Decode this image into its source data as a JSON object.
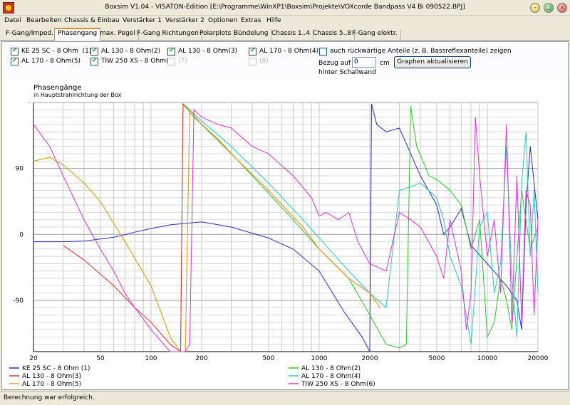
{
  "window": {
    "title": "Boxsim V1.04 - VISATON-Edition [E:\\Programme\\WinXP1\\Boxsim\\Projekte\\VOXcorde Bandpass V4 Bi 090522.BPJ]"
  },
  "menu": [
    "Datei",
    "Bearbeiten",
    "Chassis & Einbau",
    "Verstärker 1",
    "Verstärker 2",
    "Optionen",
    "Extras",
    "Hilfe"
  ],
  "tabs": [
    "F-Gang/Imped.",
    "Phasengang",
    "max. Pegel",
    "F-Gang Richtungen",
    "Polarplots",
    "Bündelung",
    "Chassis 1..4",
    "Chassis 5..8",
    "F-Gang elektr."
  ],
  "active_tab": 1,
  "checkboxes": [
    {
      "label": "KE 25 SC - 8 Ohm",
      "tag": "(1)",
      "checked": true,
      "disabled": false
    },
    {
      "label": "AL 130 - 8 Ohm(2)",
      "tag": "",
      "checked": true,
      "disabled": false
    },
    {
      "label": "AL 130 - 8 Ohm(3)",
      "tag": "",
      "checked": true,
      "disabled": false
    },
    {
      "label": "AL 170 - 8 Ohm(4)",
      "tag": "",
      "checked": true,
      "disabled": false
    },
    {
      "label": "AL 170 - 8 Ohm(5)",
      "tag": "",
      "checked": true,
      "disabled": false
    },
    {
      "label": "TIW 250 XS - 8 Ohm(6)",
      "tag": "",
      "checked": true,
      "disabled": false
    },
    {
      "label": "(7)",
      "tag": "",
      "checked": false,
      "disabled": true
    },
    {
      "label": "(8)",
      "tag": "",
      "checked": false,
      "disabled": true
    }
  ],
  "options": {
    "rear_label": "auch rückwärtige Anteile (z. B. Bassreflexanteile) zeigen",
    "rear_checked": false,
    "ref_label_1": "Bezug auf",
    "ref_label_2": "hinter Schallwand",
    "ref_value": "0",
    "ref_unit": "cm",
    "update_button": "Graphen aktualisieren"
  },
  "status": "Berechnung war erfolgreich.",
  "chart_data": {
    "type": "line",
    "title": "Phasengänge",
    "subtitle": "in Hauptstrahlrichtung der Box",
    "x_scale": "log",
    "xlim": [
      20,
      20000
    ],
    "ylim": [
      -160,
      180
    ],
    "x_ticks": [
      20,
      50,
      100,
      200,
      500,
      1000,
      2000,
      5000,
      10000,
      20000
    ],
    "y_ticks": [
      90,
      0,
      -90
    ],
    "grid": true,
    "legend_position": "bottom",
    "series": [
      {
        "name": "KE 25 SC - 8 Ohm",
        "tag": "(1)",
        "color": "#2828c8",
        "x": [
          20,
          30,
          40,
          60,
          80,
          100,
          130,
          160,
          200,
          300,
          500,
          700,
          1000,
          1400,
          1800,
          2000,
          2050,
          2200,
          2500,
          3000,
          4000,
          5000,
          5500,
          6000,
          7000,
          8000,
          10000,
          13000,
          15000,
          16000,
          17000,
          18000,
          20000
        ],
        "y": [
          -10,
          -10,
          -9,
          -4,
          3,
          8,
          13,
          15,
          17,
          10,
          -5,
          -20,
          -50,
          -105,
          -140,
          -160,
          178,
          150,
          140,
          145,
          80,
          40,
          0,
          10,
          35,
          -15,
          -40,
          -70,
          -90,
          -130,
          40,
          120,
          20
        ]
      },
      {
        "name": "AL 130 - 8 Ohm(2)",
        "tag": "",
        "color": "#28c828",
        "x": [
          20,
          25,
          30,
          40,
          50,
          70,
          100,
          130,
          150,
          155,
          180,
          250,
          400,
          700,
          1000,
          1500,
          2000,
          2500,
          3000,
          3300,
          3500,
          3800,
          4500,
          5000,
          6000,
          7000,
          8000,
          9000,
          10000,
          11000,
          12000,
          13000,
          14000,
          16000,
          18000,
          20000
        ],
        "y": [
          100,
          105,
          95,
          70,
          45,
          -10,
          -70,
          -140,
          -170,
          178,
          160,
          130,
          80,
          20,
          -20,
          -60,
          -110,
          -150,
          -155,
          -150,
          175,
          120,
          80,
          75,
          60,
          40,
          -20,
          20,
          -140,
          -120,
          -60,
          -90,
          -130,
          60,
          -20,
          10
        ]
      },
      {
        "name": "AL 130 - 8 Ohm(3)",
        "tag": "",
        "color": "#e83030",
        "x": [
          30,
          40,
          60,
          80,
          100,
          130,
          150,
          155,
          170,
          200,
          300,
          500,
          800,
          1000,
          1500,
          2000,
          2300
        ],
        "y": [
          -15,
          -35,
          -70,
          -100,
          -120,
          -150,
          -170,
          178,
          170,
          150,
          110,
          60,
          10,
          -20,
          -60,
          -80,
          -100
        ]
      },
      {
        "name": "AL 170 - 8 Ohm(4)",
        "tag": "",
        "color": "#28c8c8",
        "x": [
          160,
          170,
          200,
          300,
          500,
          800,
          1000,
          1500,
          2000,
          2500,
          3000,
          3500,
          4000,
          5000,
          5500,
          6000,
          7000,
          8000,
          9000,
          10000,
          11000,
          12000,
          13000,
          14000,
          15000,
          16000,
          17000,
          18000,
          19000,
          20000
        ],
        "y": [
          -170,
          170,
          155,
          120,
          70,
          20,
          -5,
          -50,
          -80,
          -100,
          60,
          65,
          70,
          50,
          20,
          -30,
          -70,
          -150,
          10,
          30,
          -80,
          -40,
          120,
          -60,
          -140,
          70,
          140,
          -30,
          60,
          -80
        ]
      },
      {
        "name": "AL 170 - 8 Ohm(5)",
        "tag": "",
        "color": "#f0a020",
        "x": [
          20,
          25,
          30,
          40,
          50,
          70,
          100,
          130,
          150,
          160,
          170,
          200,
          300,
          500,
          800,
          1000,
          1500,
          2000,
          2300
        ],
        "y": [
          100,
          105,
          95,
          70,
          45,
          -10,
          -70,
          -140,
          -160,
          -170,
          170,
          150,
          110,
          60,
          10,
          -20,
          -60,
          -80,
          -100
        ]
      },
      {
        "name": "TIW 250 XS - 8 Ohm(6)",
        "tag": "",
        "color": "#e030e0",
        "x": [
          20,
          25,
          30,
          40,
          50,
          60,
          70,
          80,
          100,
          130,
          160,
          170,
          180,
          200,
          250,
          300,
          400,
          500,
          700,
          900,
          1000,
          1100,
          1300,
          1500,
          1700,
          2000,
          2500,
          3000,
          3500,
          4000,
          5000,
          5500,
          6000,
          7000,
          7500,
          8000,
          8500,
          9000,
          10000,
          11000,
          12000,
          13000,
          14000,
          15000,
          16000,
          17000,
          18000,
          19000,
          20000
        ],
        "y": [
          150,
          120,
          80,
          20,
          -20,
          -50,
          -80,
          -100,
          -130,
          -160,
          -170,
          -150,
          170,
          160,
          150,
          145,
          120,
          110,
          80,
          50,
          25,
          30,
          20,
          30,
          -10,
          -40,
          -50,
          30,
          20,
          10,
          -30,
          -60,
          20,
          -50,
          -130,
          -80,
          160,
          80,
          -30,
          20,
          -80,
          150,
          -120,
          80,
          -120,
          60,
          40,
          -110,
          20
        ]
      }
    ]
  }
}
